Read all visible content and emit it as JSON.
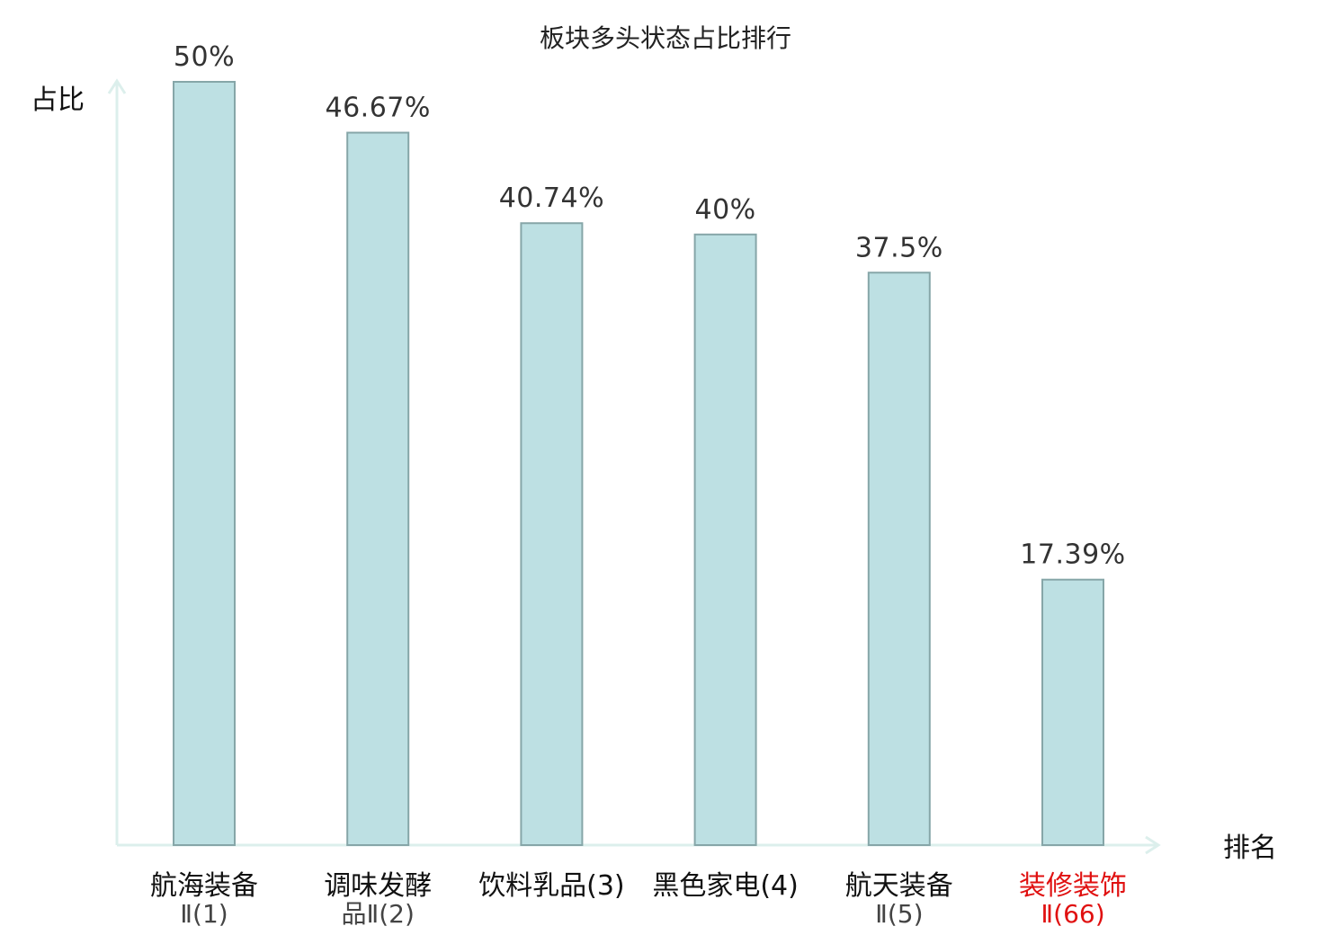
{
  "chart_data": {
    "type": "bar",
    "title": "板块多头状态占比排行",
    "ylabel": "占比",
    "xlabel": "排名",
    "ylim": [
      0,
      50
    ],
    "grid": false,
    "categories": [
      {
        "line1": "航海装备",
        "line2": "Ⅱ(1)",
        "highlight": false
      },
      {
        "line1": "调味发酵",
        "line2": "品Ⅱ(2)",
        "highlight": false
      },
      {
        "line1": "饮料乳品(3)",
        "line2": "",
        "highlight": false
      },
      {
        "line1": "黑色家电(4)",
        "line2": "",
        "highlight": false
      },
      {
        "line1": "航天装备",
        "line2": "Ⅱ(5)",
        "highlight": false
      },
      {
        "line1": "装修装饰",
        "line2": "Ⅱ(66)",
        "highlight": true
      }
    ],
    "values": [
      50,
      46.67,
      40.74,
      40,
      37.5,
      17.39
    ],
    "value_labels": [
      "50%",
      "46.67%",
      "40.74%",
      "40%",
      "37.5%",
      "17.39%"
    ]
  },
  "colors": {
    "bar_fill": "#bde0e3",
    "bar_stroke": "#86a6a8",
    "axis": "#dcefec",
    "text": "#111111",
    "value_text": "#333333",
    "highlight": "#e01010",
    "secondary_text": "#444444"
  }
}
